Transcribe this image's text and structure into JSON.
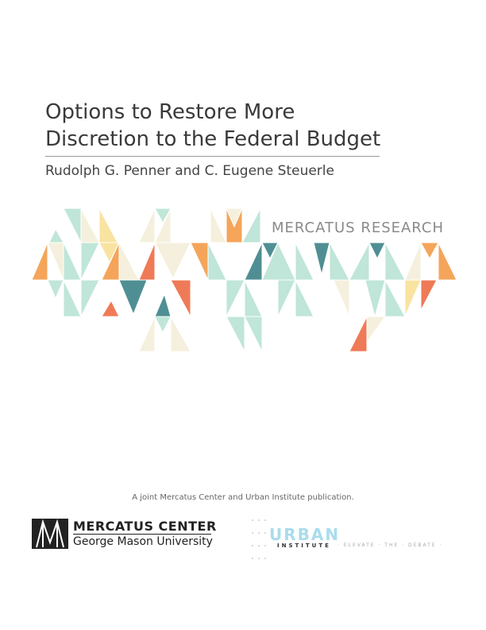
{
  "cover": {
    "title_lines": [
      "Options to Restore More",
      "Discretion to the Federal Budget"
    ],
    "authors": "Rudolph G. Penner and C. Eugene Steuerle",
    "series": "MERCATUS RESEARCH",
    "joint_note": "A joint Mercatus Center and Urban Institute publication.",
    "mercatus_logo": {
      "name": "MERCATUS CENTER",
      "university": "George Mason University"
    },
    "urban_logo": {
      "name": "URBAN",
      "sub": "INSTITUTE",
      "tagline": "· ELEVATE · THE · DEBATE ·"
    }
  }
}
